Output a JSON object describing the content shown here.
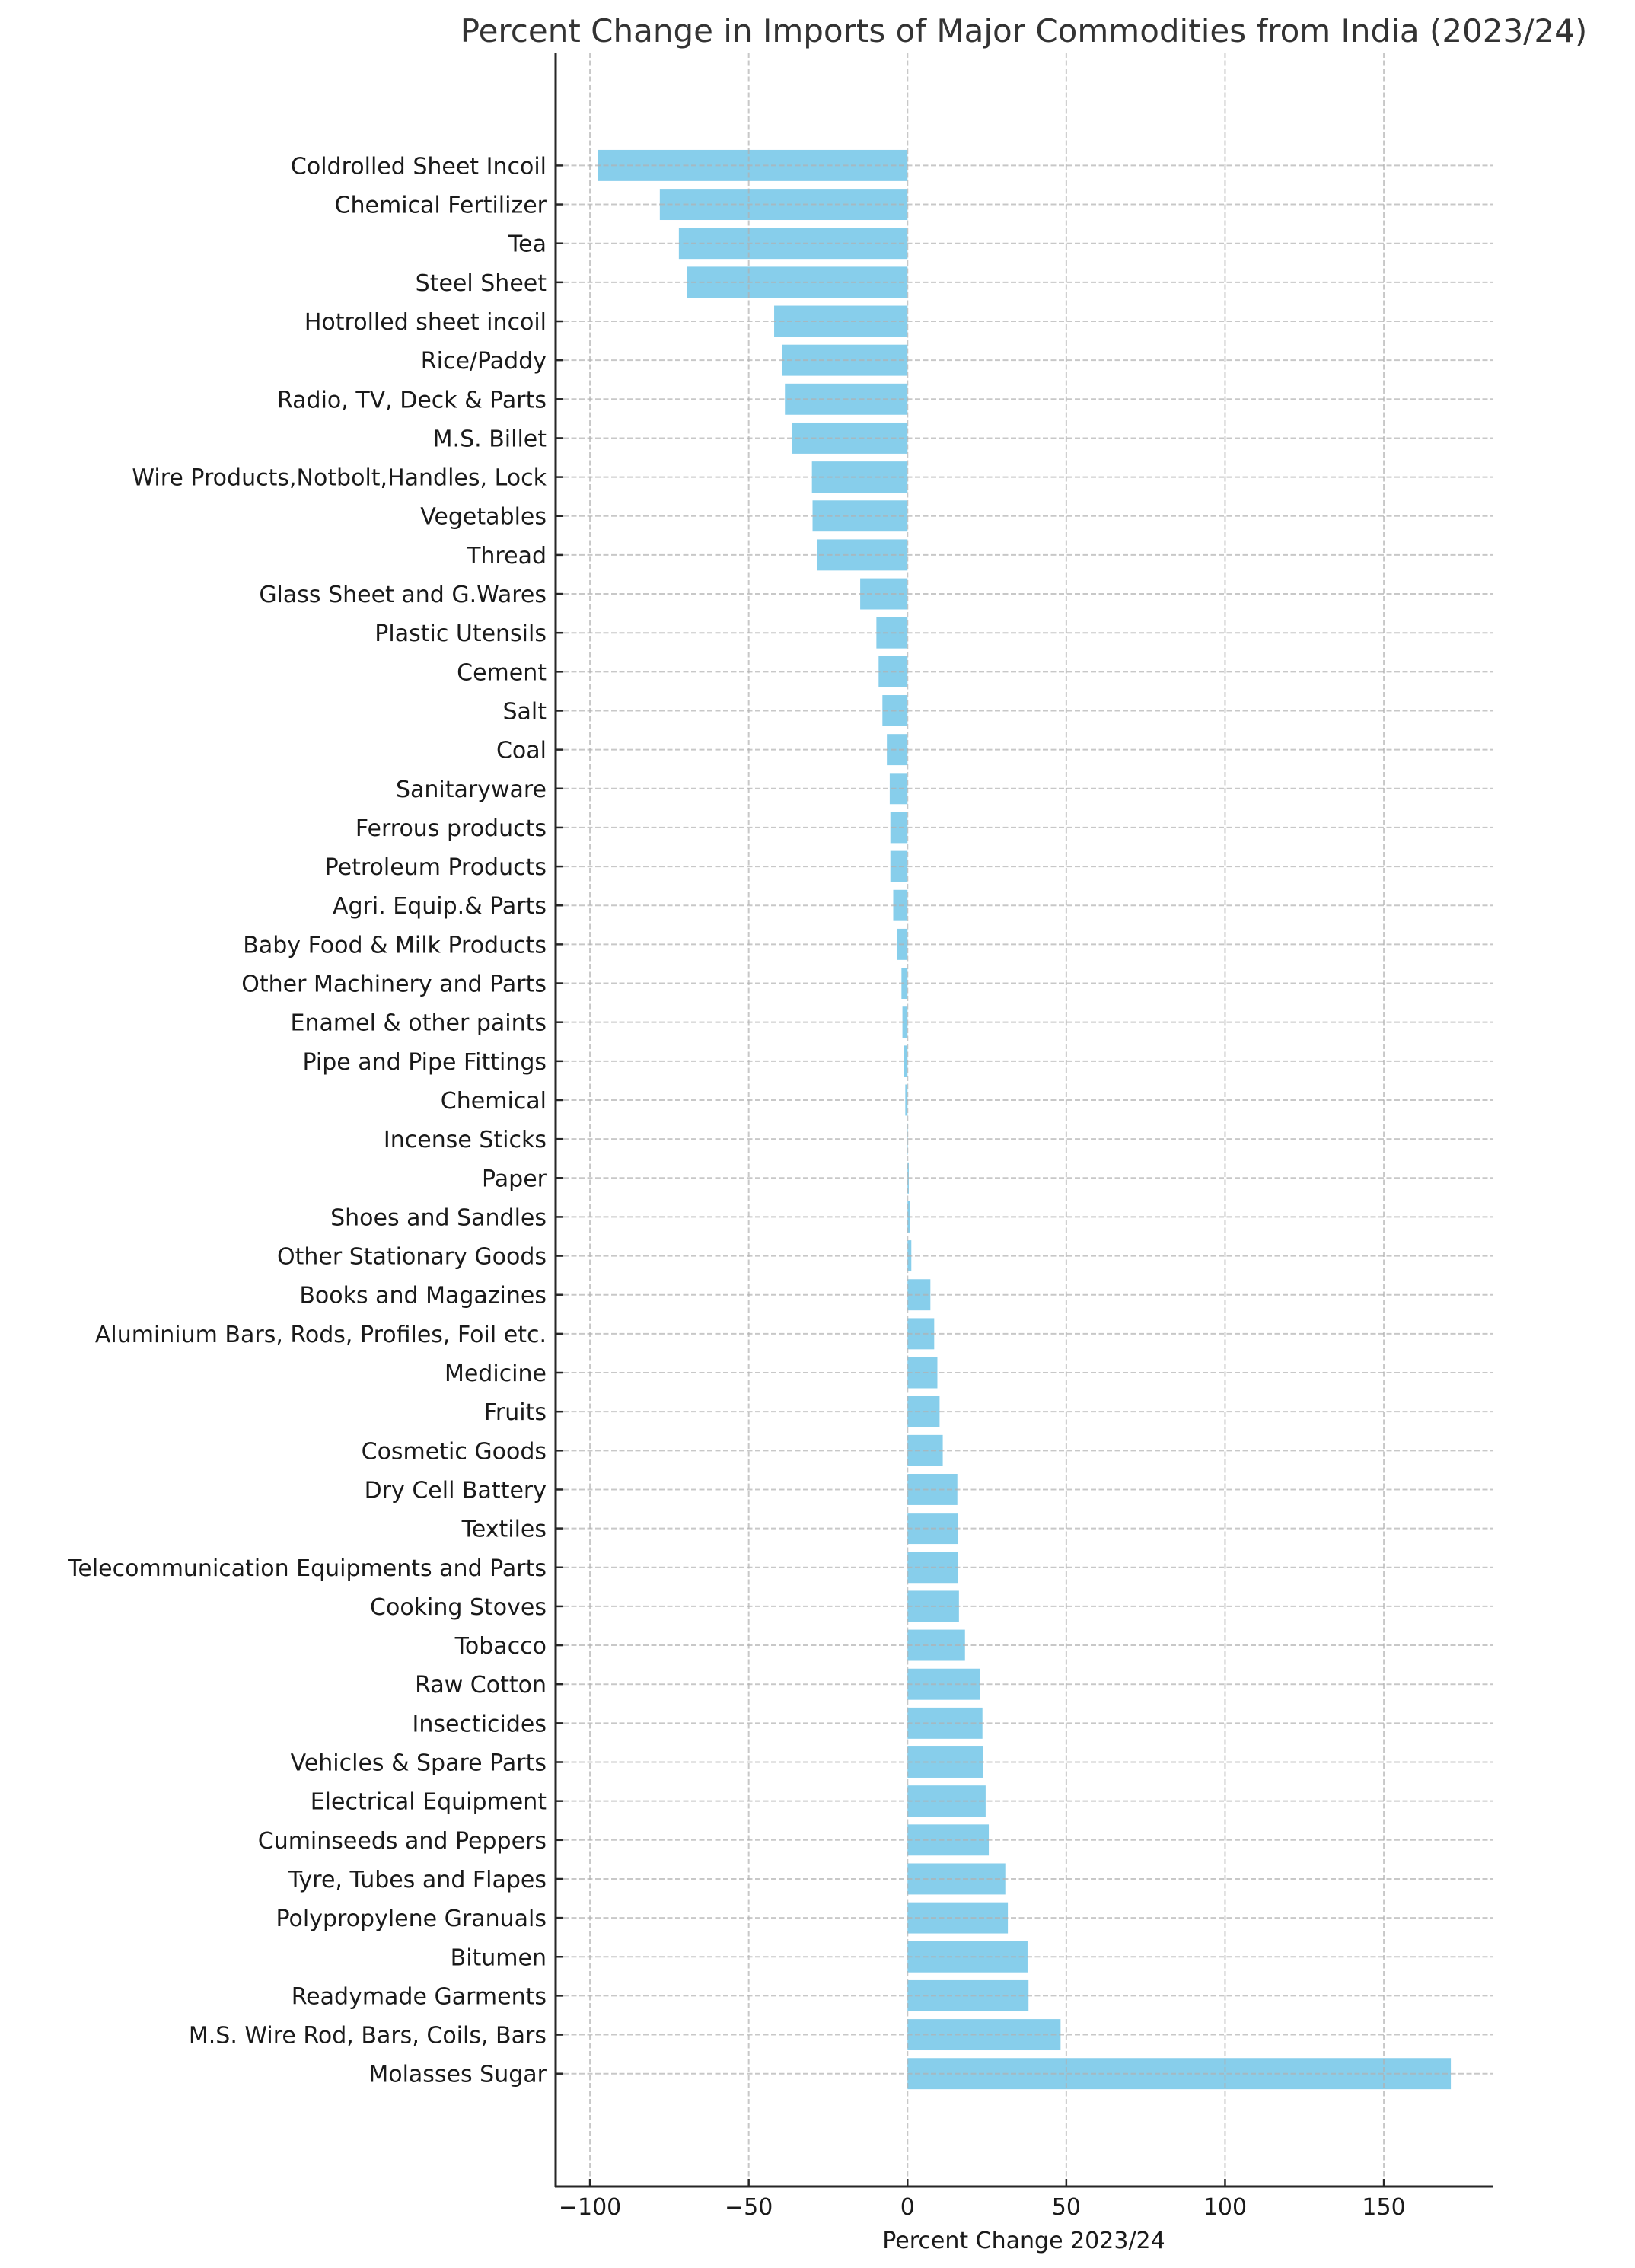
{
  "chart_data": {
    "type": "bar",
    "orientation": "horizontal",
    "title": "Percent Change in Imports of Major Commodities from India (2023/24)",
    "xlabel": "Percent Change 2023/24",
    "ylabel": "",
    "xlim": [
      -110.8,
      184.5
    ],
    "xticks": [
      -100,
      -50,
      0,
      50,
      100,
      150
    ],
    "xtick_labels": [
      "−100",
      "−50",
      "0",
      "50",
      "100",
      "150"
    ],
    "grid": true,
    "bar_color": "#87CEEB",
    "categories": [
      "Coldrolled Sheet Incoil",
      "Chemical Fertilizer",
      "Tea",
      "Steel Sheet",
      "Hotrolled sheet incoil",
      "Rice/Paddy",
      "Radio, TV, Deck & Parts",
      "M.S. Billet",
      "Wire Products,Notbolt,Handles, Lock",
      "Vegetables",
      "Thread",
      "Glass Sheet and G.Wares",
      "Plastic Utensils",
      "Cement",
      "Salt",
      "Coal",
      "Sanitaryware",
      "Ferrous products",
      "Petroleum Products",
      "Agri. Equip.& Parts",
      "Baby Food & Milk Products",
      "Other Machinery and Parts",
      "Enamel & other paints",
      "Pipe and Pipe Fittings",
      "Chemical",
      "Incense Sticks",
      "Paper",
      "Shoes and Sandles",
      "Other Stationary Goods",
      "Books and Magazines",
      "Aluminium Bars, Rods, Profiles, Foil etc.",
      "Medicine",
      "Fruits",
      "Cosmetic Goods",
      "Dry Cell Battery",
      "Textiles",
      "Telecommunication Equipments and Parts",
      "Cooking Stoves",
      "Tobacco",
      "Raw Cotton",
      "Insecticides",
      "Vehicles & Spare Parts",
      "Electrical Equipment",
      "Cuminseeds and Peppers",
      "Tyre, Tubes and Flapes",
      "Polypropylene Granuals",
      "Bitumen",
      "Readymade Garments",
      "M.S. Wire Rod, Bars, Coils, Bars",
      "Molasses Sugar"
    ],
    "values": [
      -97.4,
      -78.0,
      -72.0,
      -69.5,
      -42.0,
      -39.6,
      -38.6,
      -36.4,
      -30.1,
      -29.9,
      -28.4,
      -14.9,
      -9.8,
      -9.1,
      -7.9,
      -6.5,
      -5.6,
      -5.4,
      -5.4,
      -4.5,
      -3.3,
      -1.9,
      -1.6,
      -1.1,
      -0.7,
      -0.1,
      0.4,
      0.7,
      1.2,
      7.2,
      8.4,
      9.4,
      10.1,
      11.1,
      15.7,
      15.9,
      15.9,
      16.2,
      18.1,
      22.9,
      23.6,
      23.9,
      24.6,
      25.6,
      30.8,
      31.6,
      37.8,
      38.1,
      48.2,
      171.1
    ]
  }
}
